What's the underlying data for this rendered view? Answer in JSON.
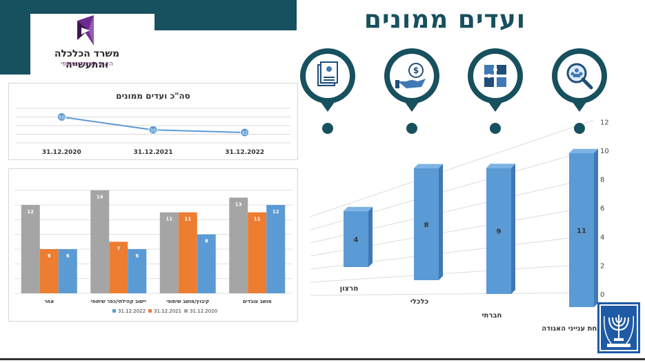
{
  "header": {
    "title": "ועדים ממונים",
    "ministry_name": "משרד הכלכלה והתעשייה",
    "ministry_division": "האגף לאיגוד שיתופי"
  },
  "colors": {
    "brand_dark": "#17505e",
    "series_2022": "#5b9bd5",
    "series_2021": "#ed7d31",
    "series_2020": "#a5a5a5",
    "bar3d": "#5b9bd5"
  },
  "icons": [
    "document-person-icon",
    "hand-coin-icon",
    "puzzle-icon",
    "search-people-icon"
  ],
  "chart_data": [
    {
      "type": "line",
      "title": "סה\"כ ועדים ממונים",
      "categories": [
        "31.12.2020",
        "31.12.2021",
        "31.12.2022"
      ],
      "series": [
        {
          "values": [
            50,
            35,
            32
          ]
        }
      ],
      "grid": true
    },
    {
      "type": "bar",
      "categories": [
        "מושב עובדים",
        "קיבוץ/מושב שיתופי",
        "יישוב קהילתי/כפר שיתופי",
        "אחר"
      ],
      "series": [
        {
          "name": "31.12.2022",
          "values": [
            12,
            8,
            6,
            6
          ]
        },
        {
          "name": "31.12.2021",
          "values": [
            11,
            11,
            7,
            6
          ]
        },
        {
          "name": "31.12.2020",
          "values": [
            13,
            11,
            14,
            12
          ]
        }
      ],
      "ylim": [
        0,
        15
      ],
      "legend": "bottom",
      "grid": true
    },
    {
      "type": "bar",
      "categories": [
        "הזנחת ענייני האגודה",
        "חברתי",
        "כלכלי",
        "מרצון"
      ],
      "values": [
        11,
        9,
        8,
        4
      ],
      "yticks": [
        "0",
        "2",
        "4",
        "6",
        "8",
        "10",
        "12"
      ],
      "ylim": [
        0,
        12
      ],
      "grid": true
    }
  ]
}
